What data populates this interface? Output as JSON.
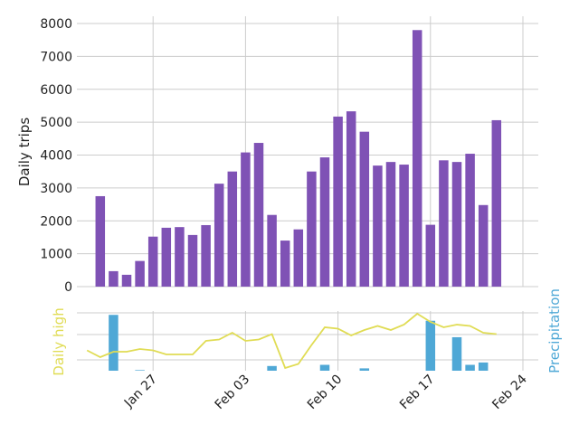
{
  "chart_data": [
    {
      "type": "bar",
      "ylabel": "Daily trips",
      "ylim": [
        0,
        8200
      ],
      "yticks": [
        0,
        1000,
        2000,
        3000,
        4000,
        5000,
        6000,
        7000,
        8000
      ],
      "grid": true,
      "color": "#7f52b5",
      "x": [
        "2019-01-23",
        "2019-01-24",
        "2019-01-25",
        "2019-01-26",
        "2019-01-27",
        "2019-01-28",
        "2019-01-29",
        "2019-01-30",
        "2019-01-31",
        "2019-02-01",
        "2019-02-02",
        "2019-02-03",
        "2019-02-04",
        "2019-02-05",
        "2019-02-06",
        "2019-02-07",
        "2019-02-08",
        "2019-02-09",
        "2019-02-10",
        "2019-02-11",
        "2019-02-12",
        "2019-02-13",
        "2019-02-14",
        "2019-02-15",
        "2019-02-16",
        "2019-02-17",
        "2019-02-18",
        "2019-02-19",
        "2019-02-20",
        "2019-02-21",
        "2019-02-22",
        "2019-02-23"
      ],
      "values": [
        2750,
        470,
        360,
        780,
        1520,
        1790,
        1810,
        1570,
        1870,
        3130,
        3500,
        4080,
        4370,
        2180,
        1400,
        1740,
        3500,
        3930,
        5170,
        5330,
        4710,
        3680,
        3790,
        3710,
        7800,
        1880,
        3840,
        3790,
        4040,
        2480,
        5060,
        null
      ]
    },
    {
      "type": "bar+line",
      "ylabel_left": "Daily high",
      "ylabel_right": "Precipitation",
      "xticks": [
        "Jan 27",
        "Feb 03",
        "Feb 10",
        "Feb 17",
        "Feb 24"
      ],
      "precipitation": {
        "color": "#4fa8d6",
        "x": [
          "2019-01-24",
          "2019-01-26",
          "2019-02-05",
          "2019-02-09",
          "2019-02-12",
          "2019-02-17",
          "2019-02-19",
          "2019-02-20",
          "2019-02-21"
        ],
        "values": [
          0.95,
          0.01,
          0.08,
          0.1,
          0.04,
          0.85,
          0.57,
          0.1,
          0.14
        ]
      },
      "daily_high": {
        "color": "#e0dc54",
        "x": [
          "2019-01-22",
          "2019-01-23",
          "2019-01-24",
          "2019-01-25",
          "2019-01-26",
          "2019-01-27",
          "2019-01-28",
          "2019-01-29",
          "2019-01-30",
          "2019-01-31",
          "2019-02-01",
          "2019-02-02",
          "2019-02-03",
          "2019-02-04",
          "2019-02-05",
          "2019-02-06",
          "2019-02-07",
          "2019-02-08",
          "2019-02-09",
          "2019-02-10",
          "2019-02-11",
          "2019-02-12",
          "2019-02-13",
          "2019-02-14",
          "2019-02-15",
          "2019-02-16",
          "2019-02-17",
          "2019-02-18",
          "2019-02-19",
          "2019-02-20",
          "2019-02-21",
          "2019-02-22"
        ],
        "values": [
          43,
          38,
          42,
          42,
          44,
          43,
          40,
          40,
          40,
          50,
          51,
          56,
          50,
          51,
          55,
          30,
          33,
          47,
          60,
          59,
          54,
          58,
          61,
          58,
          62,
          70,
          64,
          60,
          62,
          61,
          56,
          55
        ]
      }
    }
  ]
}
